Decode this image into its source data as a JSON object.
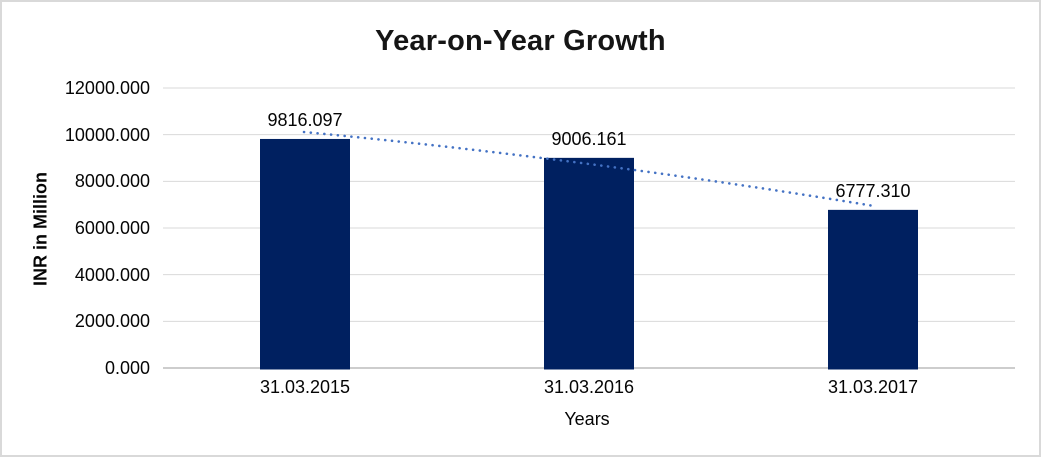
{
  "chart_data": {
    "type": "bar",
    "title": "Year-on-Year Growth",
    "categories": [
      "31.03.2015",
      "31.03.2016",
      "31.03.2017"
    ],
    "values": [
      9816.097,
      9006.161,
      6777.31
    ],
    "data_labels": [
      "9816.097",
      "9006.161",
      "6777.310"
    ],
    "xlabel": "Years",
    "ylabel": "INR in Million",
    "yticks": [
      "12000.000",
      "10000.000",
      "8000.000",
      "6000.000",
      "4000.000",
      "2000.000",
      "0.000"
    ],
    "ylim": [
      0,
      12000
    ],
    "grid": "horizontal",
    "legend": "none",
    "trendline": {
      "style": "dotted",
      "direction": "declining"
    }
  },
  "colors": {
    "bar": "#002060",
    "trendline": "#4472C4",
    "gridline": "#D9D9D9",
    "axis_line": "#C6C6C6",
    "text": "#000000",
    "background": "#FFFFFF",
    "border": "#D9D9D9"
  }
}
